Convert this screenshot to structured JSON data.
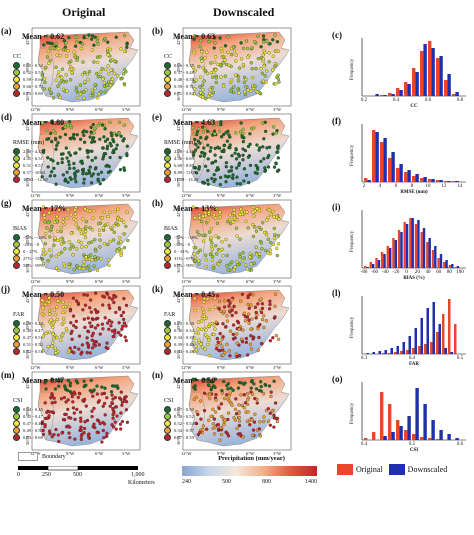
{
  "headers": {
    "original": "Original",
    "downscaled": "Downscaled"
  },
  "colors": {
    "red": "#e8472c",
    "blue": "#1f2fb0",
    "green": "#1c6b2a",
    "lime": "#9ccc3b",
    "yellow": "#f2e83a",
    "orange": "#f0a033",
    "darkred": "#c0242b"
  },
  "rows": [
    {
      "left": {
        "label": "(a)",
        "mean": "Mean = 0.62",
        "metric": "CC",
        "items": [
          "0.45 - 0.52",
          "0.52 - 0.59",
          "0.59 - 0.66",
          "0.66 - 0.73",
          "0.73 - 0.80"
        ]
      },
      "right": {
        "label": "(b)",
        "mean": "Mean = 0.63",
        "metric": "CC",
        "items": [
          "0.26 - 0.37",
          "0.37 - 0.48",
          "0.48 - 0.59",
          "0.59 - 0.71",
          "0.71 - 0.82"
        ]
      },
      "hist": {
        "label": "(c)",
        "xlabel": "CC",
        "ylabel": "Frequency",
        "ticks": [
          "0.2",
          "0.4",
          "0.6",
          "0.8"
        ]
      }
    },
    {
      "left": {
        "label": "(d)",
        "mean": "Mean = 4.80",
        "metric": "RMSE (mm)",
        "items": [
          "2.40 - 4.45",
          "4.45 - 6.51",
          "6.51 - 8.57",
          "8.57 - 10.63",
          "10.63 - 12.69"
        ]
      },
      "right": {
        "label": "(e)",
        "mean": "Mean = 4.63",
        "metric": "RMSE (mm)",
        "items": [
          "2.28 - 4.46",
          "4.46 - 6.69",
          "6.69 - 8.89",
          "8.89 - 11.09",
          "11.09 - 13.29"
        ]
      },
      "hist": {
        "label": "(f)",
        "xlabel": "RMSE (mm)",
        "ylabel": "Frequency",
        "ticks": [
          "2",
          "4",
          "6",
          "8",
          "10",
          "12",
          "14"
        ]
      }
    },
    {
      "left": {
        "label": "(g)",
        "mean": "Mean = 17%",
        "metric": "BIAS",
        "items": [
          "-72% - -20%",
          "-20% - 0",
          "0 - 27%",
          "27% - 55%",
          "55% - 99%"
        ]
      },
      "right": {
        "label": "(h)",
        "mean": "Mean = 13%",
        "metric": "BIAS",
        "items": [
          "-72% - -38%",
          "-38% - 0",
          "0 - 31%",
          "31% - 67%",
          "67% - 99%"
        ]
      },
      "hist": {
        "label": "(i)",
        "xlabel": "BIAS (%)",
        "ylabel": "Frequency",
        "ticks": [
          "-80",
          "-60",
          "-40",
          "-20",
          "0",
          "20",
          "40",
          "60",
          "80",
          "100"
        ]
      }
    },
    {
      "left": {
        "label": "(j)",
        "mean": "Mean = 0.50",
        "metric": "FAR",
        "items": [
          "0.28 - 0.40",
          "0.40 - 0.47",
          "0.47 - 0.51",
          "0.51 - 0.52",
          "0.52 - 0.54"
        ]
      },
      "right": {
        "label": "(k)",
        "mean": "Mean = 0.45",
        "metric": "FAR",
        "items": [
          "0.25 - 0.30",
          "0.30 - 0.34",
          "0.34 - 0.39",
          "0.39 - 0.44",
          "0.44 - 0.49"
        ]
      },
      "hist": {
        "label": "(l)",
        "xlabel": "FAR",
        "ylabel": "Frequency",
        "ticks": [
          "0.3",
          "0.4",
          "0.5"
        ]
      }
    },
    {
      "left": {
        "label": "(m)",
        "mean": "Mean = 0.47",
        "metric": "CSI",
        "items": [
          "0.44 - 0.45",
          "0.45 - 0.47",
          "0.47 - 0.49",
          "0.49 - 0.53",
          "0.53 - 0.60"
        ]
      },
      "right": {
        "label": "(n)",
        "mean": "Mean = 0.50",
        "metric": "CSI",
        "items": [
          "0.47 - 0.50",
          "0.50 - 0.52",
          "0.52 - 0.54",
          "0.54 - 0.57",
          "0.57 - 0.59"
        ]
      },
      "hist": {
        "label": "(o)",
        "xlabel": "CSI",
        "ylabel": "Frequency",
        "ticks": [
          "0.4",
          "0.5",
          "0.6"
        ]
      }
    }
  ],
  "axes": {
    "lat": [
      "42°N",
      "39°N",
      "36°N"
    ],
    "lon": [
      "12°W",
      "9°W",
      "6°W",
      "3°W"
    ]
  },
  "footer": {
    "boundary": "Boundary",
    "scale_ticks": [
      "0",
      "250",
      "500",
      "1,000"
    ],
    "scale_unit": "Kilometers",
    "cbar_title": "Precipitation (mm/year)",
    "cbar_ticks": [
      "240",
      "500",
      "800",
      "1400"
    ],
    "legend_original": "Original",
    "legend_downscaled": "Downscaled"
  }
}
